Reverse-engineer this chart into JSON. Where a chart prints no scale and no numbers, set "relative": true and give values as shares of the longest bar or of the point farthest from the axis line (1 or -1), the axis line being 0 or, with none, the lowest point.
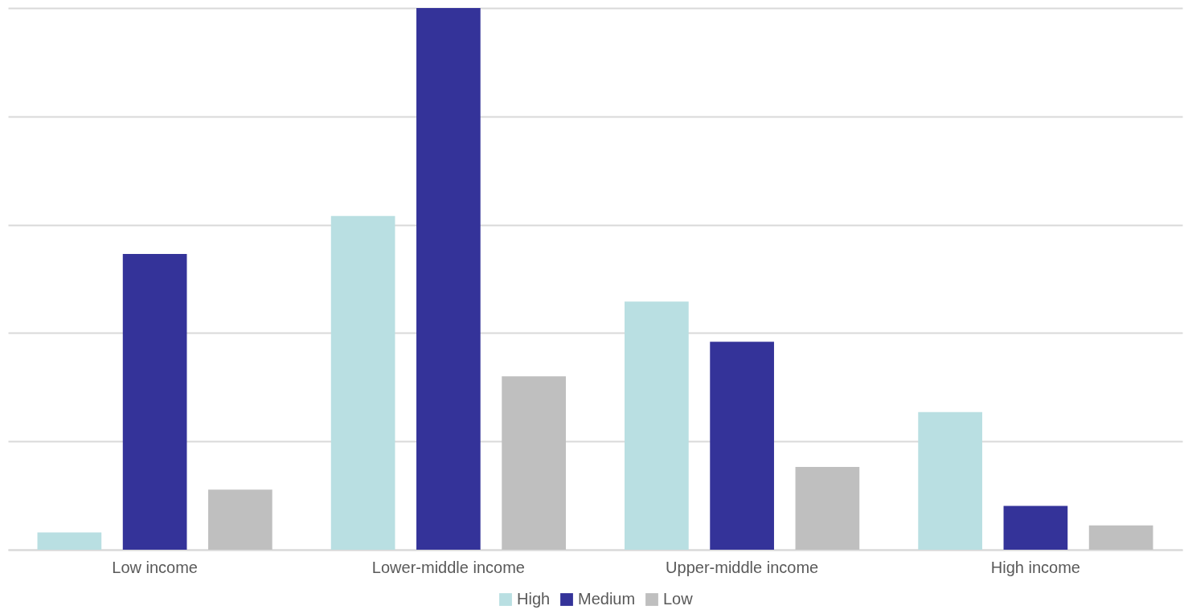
{
  "chart_data": {
    "type": "bar",
    "relative": true,
    "categories": [
      "Low income",
      "Lower-middle income",
      "Upper-middle income",
      "High income"
    ],
    "series": [
      {
        "name": "High",
        "color": "#b9dfe2",
        "values": [
          0.032,
          0.616,
          0.458,
          0.254
        ]
      },
      {
        "name": "Medium",
        "color": "#343399",
        "values": [
          0.546,
          1,
          0.384,
          0.081
        ]
      },
      {
        "name": "Low",
        "color": "#bfbfbf",
        "values": [
          0.111,
          0.32,
          0.153,
          0.045
        ]
      }
    ],
    "grid": true,
    "legend": "bottom"
  }
}
